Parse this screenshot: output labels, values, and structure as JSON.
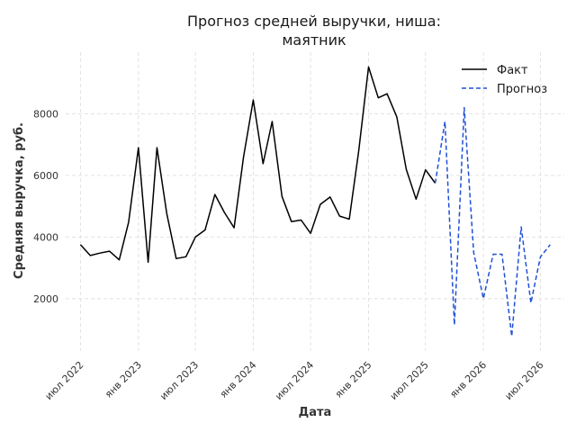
{
  "chart_data": {
    "type": "line",
    "title": [
      "Прогноз средней выручки, ниша:",
      "маятник"
    ],
    "xlabel": "Дата",
    "ylabel": "Средняя выручка, руб.",
    "grid": true,
    "legend_position": "top-right",
    "x_domain": [
      "2022-05-15",
      "2026-09-15"
    ],
    "ylim": [
      300,
      10000
    ],
    "y_ticks": [
      2000,
      4000,
      6000,
      8000
    ],
    "x_ticks": [
      {
        "date": "2022-07-01",
        "label": "июл 2022"
      },
      {
        "date": "2023-01-01",
        "label": "янв 2023"
      },
      {
        "date": "2023-07-01",
        "label": "июл 2023"
      },
      {
        "date": "2024-01-01",
        "label": "янв 2024"
      },
      {
        "date": "2024-07-01",
        "label": "июл 2024"
      },
      {
        "date": "2025-01-01",
        "label": "янв 2025"
      },
      {
        "date": "2025-07-01",
        "label": "июл 2025"
      },
      {
        "date": "2026-01-01",
        "label": "янв 2026"
      },
      {
        "date": "2026-07-01",
        "label": "июл 2026"
      }
    ],
    "series": [
      {
        "name": "Факт",
        "color": "#000000",
        "style": "solid",
        "x": [
          "2022-07-01",
          "2022-08-01",
          "2022-09-01",
          "2022-10-01",
          "2022-11-01",
          "2022-12-01",
          "2023-01-01",
          "2023-02-01",
          "2023-03-01",
          "2023-04-01",
          "2023-05-01",
          "2023-06-01",
          "2023-07-01",
          "2023-08-01",
          "2023-09-01",
          "2023-10-01",
          "2023-11-01",
          "2023-12-01",
          "2024-01-01",
          "2024-02-01",
          "2024-03-01",
          "2024-04-01",
          "2024-05-01",
          "2024-06-01",
          "2024-07-01",
          "2024-08-01",
          "2024-09-01",
          "2024-10-01",
          "2024-11-01",
          "2024-12-01",
          "2025-01-01",
          "2025-02-01",
          "2025-03-01",
          "2025-04-01",
          "2025-05-01",
          "2025-06-01",
          "2025-07-01",
          "2025-08-01"
        ],
        "values": [
          3750,
          3400,
          3480,
          3540,
          3260,
          4480,
          6900,
          3180,
          6900,
          4760,
          3300,
          3360,
          4000,
          4230,
          5380,
          4800,
          4300,
          6600,
          8450,
          6380,
          7750,
          5320,
          4500,
          4550,
          4120,
          5060,
          5300,
          4680,
          4580,
          6800,
          9520,
          8520,
          8650,
          7900,
          6200,
          5230,
          6180,
          5750
        ]
      },
      {
        "name": "Прогноз",
        "color": "#1f4fd8",
        "style": "dashed",
        "x": [
          "2025-08-01",
          "2025-09-01",
          "2025-10-01",
          "2025-11-01",
          "2025-12-01",
          "2026-01-01",
          "2026-02-01",
          "2026-03-01",
          "2026-04-01",
          "2026-05-01",
          "2026-06-01",
          "2026-07-01",
          "2026-08-01"
        ],
        "values": [
          5750,
          7750,
          1150,
          8200,
          3500,
          2000,
          3440,
          3440,
          780,
          4330,
          1860,
          3350,
          3750
        ]
      }
    ]
  }
}
